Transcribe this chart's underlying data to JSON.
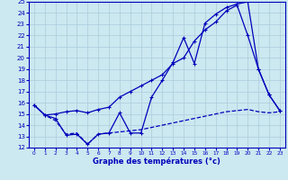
{
  "xlabel": "Graphe des températures (°c)",
  "xlim": [
    -0.5,
    23.5
  ],
  "ylim": [
    12,
    25
  ],
  "yticks": [
    12,
    13,
    14,
    15,
    16,
    17,
    18,
    19,
    20,
    21,
    22,
    23,
    24,
    25
  ],
  "xticks": [
    0,
    1,
    2,
    3,
    4,
    5,
    6,
    7,
    8,
    9,
    10,
    11,
    12,
    13,
    14,
    15,
    16,
    17,
    18,
    19,
    20,
    21,
    22,
    23
  ],
  "bg_color": "#cce8f0",
  "grid_color": "#aaccdd",
  "line_color": "#0000bb",
  "line1_x": [
    0,
    1,
    2,
    3,
    4,
    5,
    6,
    7,
    8,
    9,
    10,
    11,
    12,
    13,
    14,
    15,
    16,
    17,
    18,
    19,
    20,
    21,
    22,
    23
  ],
  "line1_y": [
    15.8,
    14.9,
    14.6,
    13.1,
    13.2,
    12.3,
    13.2,
    13.3,
    15.1,
    13.3,
    13.3,
    16.5,
    18.0,
    19.6,
    21.8,
    19.5,
    23.1,
    23.9,
    24.5,
    24.8,
    25.0,
    19.0,
    16.7,
    15.3
  ],
  "line2_x": [
    0,
    1,
    2,
    3,
    4,
    5,
    6,
    7,
    8,
    9,
    10,
    11,
    12,
    13,
    14,
    15,
    16,
    17,
    18,
    19,
    20,
    21,
    22,
    23
  ],
  "line2_y": [
    15.8,
    14.9,
    15.0,
    15.2,
    15.3,
    15.1,
    15.4,
    15.6,
    16.5,
    17.0,
    17.5,
    18.0,
    18.5,
    19.5,
    20.0,
    21.5,
    22.5,
    23.2,
    24.2,
    24.7,
    22.0,
    19.0,
    16.7,
    15.3
  ],
  "line3_x": [
    0,
    1,
    2,
    3,
    4,
    5,
    6,
    7,
    8,
    9,
    10,
    11,
    12,
    13,
    14,
    15,
    16,
    17,
    18,
    19,
    20,
    21,
    22,
    23
  ],
  "line3_y": [
    15.8,
    14.9,
    14.4,
    13.2,
    13.3,
    12.3,
    13.2,
    13.3,
    13.4,
    13.5,
    13.6,
    13.8,
    14.0,
    14.2,
    14.4,
    14.6,
    14.8,
    15.0,
    15.2,
    15.3,
    15.4,
    15.2,
    15.1,
    15.2
  ]
}
